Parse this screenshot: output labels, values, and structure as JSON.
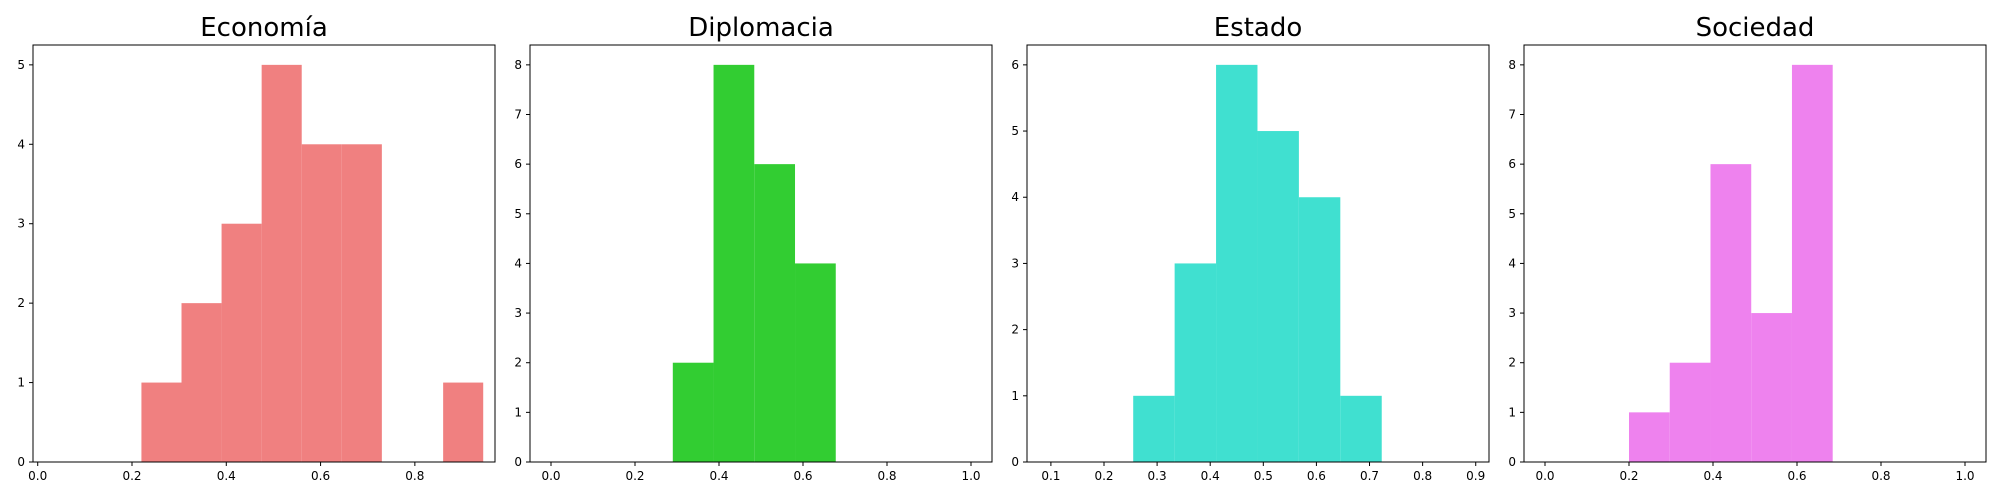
{
  "chart_data": [
    {
      "type": "bar",
      "title": "Economía",
      "color": "#f08080",
      "bin_edges": [
        0.22,
        0.305,
        0.39,
        0.475,
        0.56,
        0.645,
        0.73,
        0.775,
        0.86,
        0.945
      ],
      "values": [
        1,
        2,
        3,
        5,
        4,
        4,
        0,
        0,
        1
      ],
      "xlim": [
        -0.01,
        0.97
      ],
      "ylim": [
        0,
        5.25
      ],
      "xticks": [
        0.0,
        0.2,
        0.4,
        0.6,
        0.8
      ],
      "xtick_labels": [
        "0.0",
        "0.2",
        "0.4",
        "0.6",
        "0.8"
      ],
      "yticks": [
        0,
        1,
        2,
        3,
        4,
        5
      ],
      "ytick_labels": [
        "0",
        "1",
        "2",
        "3",
        "4",
        "5"
      ]
    },
    {
      "type": "bar",
      "title": "Diplomacia",
      "color": "#32cd32",
      "bin_edges": [
        0.29,
        0.387,
        0.484,
        0.581,
        0.678
      ],
      "values": [
        2,
        8,
        6,
        4
      ],
      "xlim": [
        -0.05,
        1.05
      ],
      "ylim": [
        0,
        8.4
      ],
      "xticks": [
        0.0,
        0.2,
        0.4,
        0.6,
        0.8,
        1.0
      ],
      "xtick_labels": [
        "0.0",
        "0.2",
        "0.4",
        "0.6",
        "0.8",
        "1.0"
      ],
      "yticks": [
        0,
        1,
        2,
        3,
        4,
        5,
        6,
        7,
        8
      ],
      "ytick_labels": [
        "0",
        "1",
        "2",
        "3",
        "4",
        "5",
        "6",
        "7",
        "8"
      ]
    },
    {
      "type": "bar",
      "title": "Estado",
      "color": "#40e0d0",
      "bin_edges": [
        0.255,
        0.333,
        0.411,
        0.489,
        0.567,
        0.645,
        0.723
      ],
      "values": [
        1,
        3,
        6,
        5,
        4,
        1
      ],
      "xlim": [
        0.055,
        0.925
      ],
      "ylim": [
        0,
        6.3
      ],
      "xticks": [
        0.1,
        0.2,
        0.3,
        0.4,
        0.5,
        0.6,
        0.7,
        0.8,
        0.9
      ],
      "xtick_labels": [
        "0.1",
        "0.2",
        "0.3",
        "0.4",
        "0.5",
        "0.6",
        "0.7",
        "0.8",
        "0.9"
      ],
      "yticks": [
        0,
        1,
        2,
        3,
        4,
        5,
        6
      ],
      "ytick_labels": [
        "0",
        "1",
        "2",
        "3",
        "4",
        "5",
        "6"
      ]
    },
    {
      "type": "bar",
      "title": "Sociedad",
      "color": "#ee82ee",
      "bin_edges": [
        0.2,
        0.297,
        0.394,
        0.491,
        0.588,
        0.685
      ],
      "values": [
        1,
        2,
        6,
        3,
        8
      ],
      "xlim": [
        -0.05,
        1.05
      ],
      "ylim": [
        0,
        8.4
      ],
      "xticks": [
        0.0,
        0.2,
        0.4,
        0.6,
        0.8,
        1.0
      ],
      "xtick_labels": [
        "0.0",
        "0.2",
        "0.4",
        "0.6",
        "0.8",
        "1.0"
      ],
      "yticks": [
        0,
        1,
        2,
        3,
        4,
        5,
        6,
        7,
        8
      ],
      "ytick_labels": [
        "0",
        "1",
        "2",
        "3",
        "4",
        "5",
        "6",
        "7",
        "8"
      ]
    }
  ]
}
